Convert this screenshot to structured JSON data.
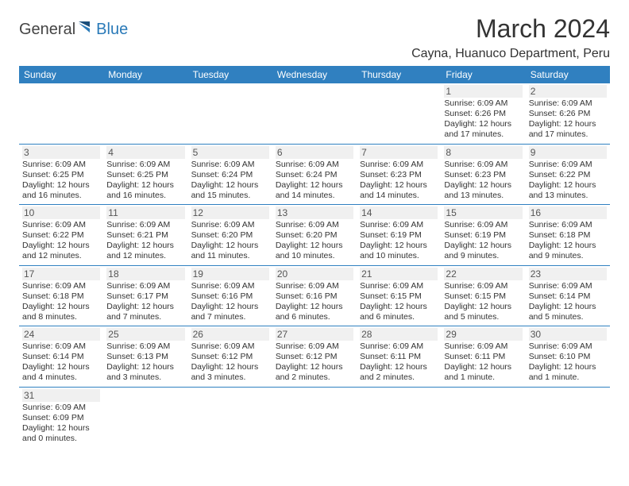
{
  "logo": {
    "general": "General",
    "blue": "Blue"
  },
  "title": "March 2024",
  "location": "Cayna, Huanuco Department, Peru",
  "colors": {
    "header_bg": "#3080c0",
    "header_text": "#ffffff",
    "daynum_bg": "#f0f0f0",
    "border": "#3080c0",
    "logo_blue": "#2a7ab8"
  },
  "weekdays": [
    "Sunday",
    "Monday",
    "Tuesday",
    "Wednesday",
    "Thursday",
    "Friday",
    "Saturday"
  ],
  "weeks": [
    [
      null,
      null,
      null,
      null,
      null,
      {
        "n": "1",
        "sunrise": "Sunrise: 6:09 AM",
        "sunset": "Sunset: 6:26 PM",
        "day1": "Daylight: 12 hours",
        "day2": "and 17 minutes."
      },
      {
        "n": "2",
        "sunrise": "Sunrise: 6:09 AM",
        "sunset": "Sunset: 6:26 PM",
        "day1": "Daylight: 12 hours",
        "day2": "and 17 minutes."
      }
    ],
    [
      {
        "n": "3",
        "sunrise": "Sunrise: 6:09 AM",
        "sunset": "Sunset: 6:25 PM",
        "day1": "Daylight: 12 hours",
        "day2": "and 16 minutes."
      },
      {
        "n": "4",
        "sunrise": "Sunrise: 6:09 AM",
        "sunset": "Sunset: 6:25 PM",
        "day1": "Daylight: 12 hours",
        "day2": "and 16 minutes."
      },
      {
        "n": "5",
        "sunrise": "Sunrise: 6:09 AM",
        "sunset": "Sunset: 6:24 PM",
        "day1": "Daylight: 12 hours",
        "day2": "and 15 minutes."
      },
      {
        "n": "6",
        "sunrise": "Sunrise: 6:09 AM",
        "sunset": "Sunset: 6:24 PM",
        "day1": "Daylight: 12 hours",
        "day2": "and 14 minutes."
      },
      {
        "n": "7",
        "sunrise": "Sunrise: 6:09 AM",
        "sunset": "Sunset: 6:23 PM",
        "day1": "Daylight: 12 hours",
        "day2": "and 14 minutes."
      },
      {
        "n": "8",
        "sunrise": "Sunrise: 6:09 AM",
        "sunset": "Sunset: 6:23 PM",
        "day1": "Daylight: 12 hours",
        "day2": "and 13 minutes."
      },
      {
        "n": "9",
        "sunrise": "Sunrise: 6:09 AM",
        "sunset": "Sunset: 6:22 PM",
        "day1": "Daylight: 12 hours",
        "day2": "and 13 minutes."
      }
    ],
    [
      {
        "n": "10",
        "sunrise": "Sunrise: 6:09 AM",
        "sunset": "Sunset: 6:22 PM",
        "day1": "Daylight: 12 hours",
        "day2": "and 12 minutes."
      },
      {
        "n": "11",
        "sunrise": "Sunrise: 6:09 AM",
        "sunset": "Sunset: 6:21 PM",
        "day1": "Daylight: 12 hours",
        "day2": "and 12 minutes."
      },
      {
        "n": "12",
        "sunrise": "Sunrise: 6:09 AM",
        "sunset": "Sunset: 6:20 PM",
        "day1": "Daylight: 12 hours",
        "day2": "and 11 minutes."
      },
      {
        "n": "13",
        "sunrise": "Sunrise: 6:09 AM",
        "sunset": "Sunset: 6:20 PM",
        "day1": "Daylight: 12 hours",
        "day2": "and 10 minutes."
      },
      {
        "n": "14",
        "sunrise": "Sunrise: 6:09 AM",
        "sunset": "Sunset: 6:19 PM",
        "day1": "Daylight: 12 hours",
        "day2": "and 10 minutes."
      },
      {
        "n": "15",
        "sunrise": "Sunrise: 6:09 AM",
        "sunset": "Sunset: 6:19 PM",
        "day1": "Daylight: 12 hours",
        "day2": "and 9 minutes."
      },
      {
        "n": "16",
        "sunrise": "Sunrise: 6:09 AM",
        "sunset": "Sunset: 6:18 PM",
        "day1": "Daylight: 12 hours",
        "day2": "and 9 minutes."
      }
    ],
    [
      {
        "n": "17",
        "sunrise": "Sunrise: 6:09 AM",
        "sunset": "Sunset: 6:18 PM",
        "day1": "Daylight: 12 hours",
        "day2": "and 8 minutes."
      },
      {
        "n": "18",
        "sunrise": "Sunrise: 6:09 AM",
        "sunset": "Sunset: 6:17 PM",
        "day1": "Daylight: 12 hours",
        "day2": "and 7 minutes."
      },
      {
        "n": "19",
        "sunrise": "Sunrise: 6:09 AM",
        "sunset": "Sunset: 6:16 PM",
        "day1": "Daylight: 12 hours",
        "day2": "and 7 minutes."
      },
      {
        "n": "20",
        "sunrise": "Sunrise: 6:09 AM",
        "sunset": "Sunset: 6:16 PM",
        "day1": "Daylight: 12 hours",
        "day2": "and 6 minutes."
      },
      {
        "n": "21",
        "sunrise": "Sunrise: 6:09 AM",
        "sunset": "Sunset: 6:15 PM",
        "day1": "Daylight: 12 hours",
        "day2": "and 6 minutes."
      },
      {
        "n": "22",
        "sunrise": "Sunrise: 6:09 AM",
        "sunset": "Sunset: 6:15 PM",
        "day1": "Daylight: 12 hours",
        "day2": "and 5 minutes."
      },
      {
        "n": "23",
        "sunrise": "Sunrise: 6:09 AM",
        "sunset": "Sunset: 6:14 PM",
        "day1": "Daylight: 12 hours",
        "day2": "and 5 minutes."
      }
    ],
    [
      {
        "n": "24",
        "sunrise": "Sunrise: 6:09 AM",
        "sunset": "Sunset: 6:14 PM",
        "day1": "Daylight: 12 hours",
        "day2": "and 4 minutes."
      },
      {
        "n": "25",
        "sunrise": "Sunrise: 6:09 AM",
        "sunset": "Sunset: 6:13 PM",
        "day1": "Daylight: 12 hours",
        "day2": "and 3 minutes."
      },
      {
        "n": "26",
        "sunrise": "Sunrise: 6:09 AM",
        "sunset": "Sunset: 6:12 PM",
        "day1": "Daylight: 12 hours",
        "day2": "and 3 minutes."
      },
      {
        "n": "27",
        "sunrise": "Sunrise: 6:09 AM",
        "sunset": "Sunset: 6:12 PM",
        "day1": "Daylight: 12 hours",
        "day2": "and 2 minutes."
      },
      {
        "n": "28",
        "sunrise": "Sunrise: 6:09 AM",
        "sunset": "Sunset: 6:11 PM",
        "day1": "Daylight: 12 hours",
        "day2": "and 2 minutes."
      },
      {
        "n": "29",
        "sunrise": "Sunrise: 6:09 AM",
        "sunset": "Sunset: 6:11 PM",
        "day1": "Daylight: 12 hours",
        "day2": "and 1 minute."
      },
      {
        "n": "30",
        "sunrise": "Sunrise: 6:09 AM",
        "sunset": "Sunset: 6:10 PM",
        "day1": "Daylight: 12 hours",
        "day2": "and 1 minute."
      }
    ],
    [
      {
        "n": "31",
        "sunrise": "Sunrise: 6:09 AM",
        "sunset": "Sunset: 6:09 PM",
        "day1": "Daylight: 12 hours",
        "day2": "and 0 minutes."
      },
      null,
      null,
      null,
      null,
      null,
      null
    ]
  ]
}
